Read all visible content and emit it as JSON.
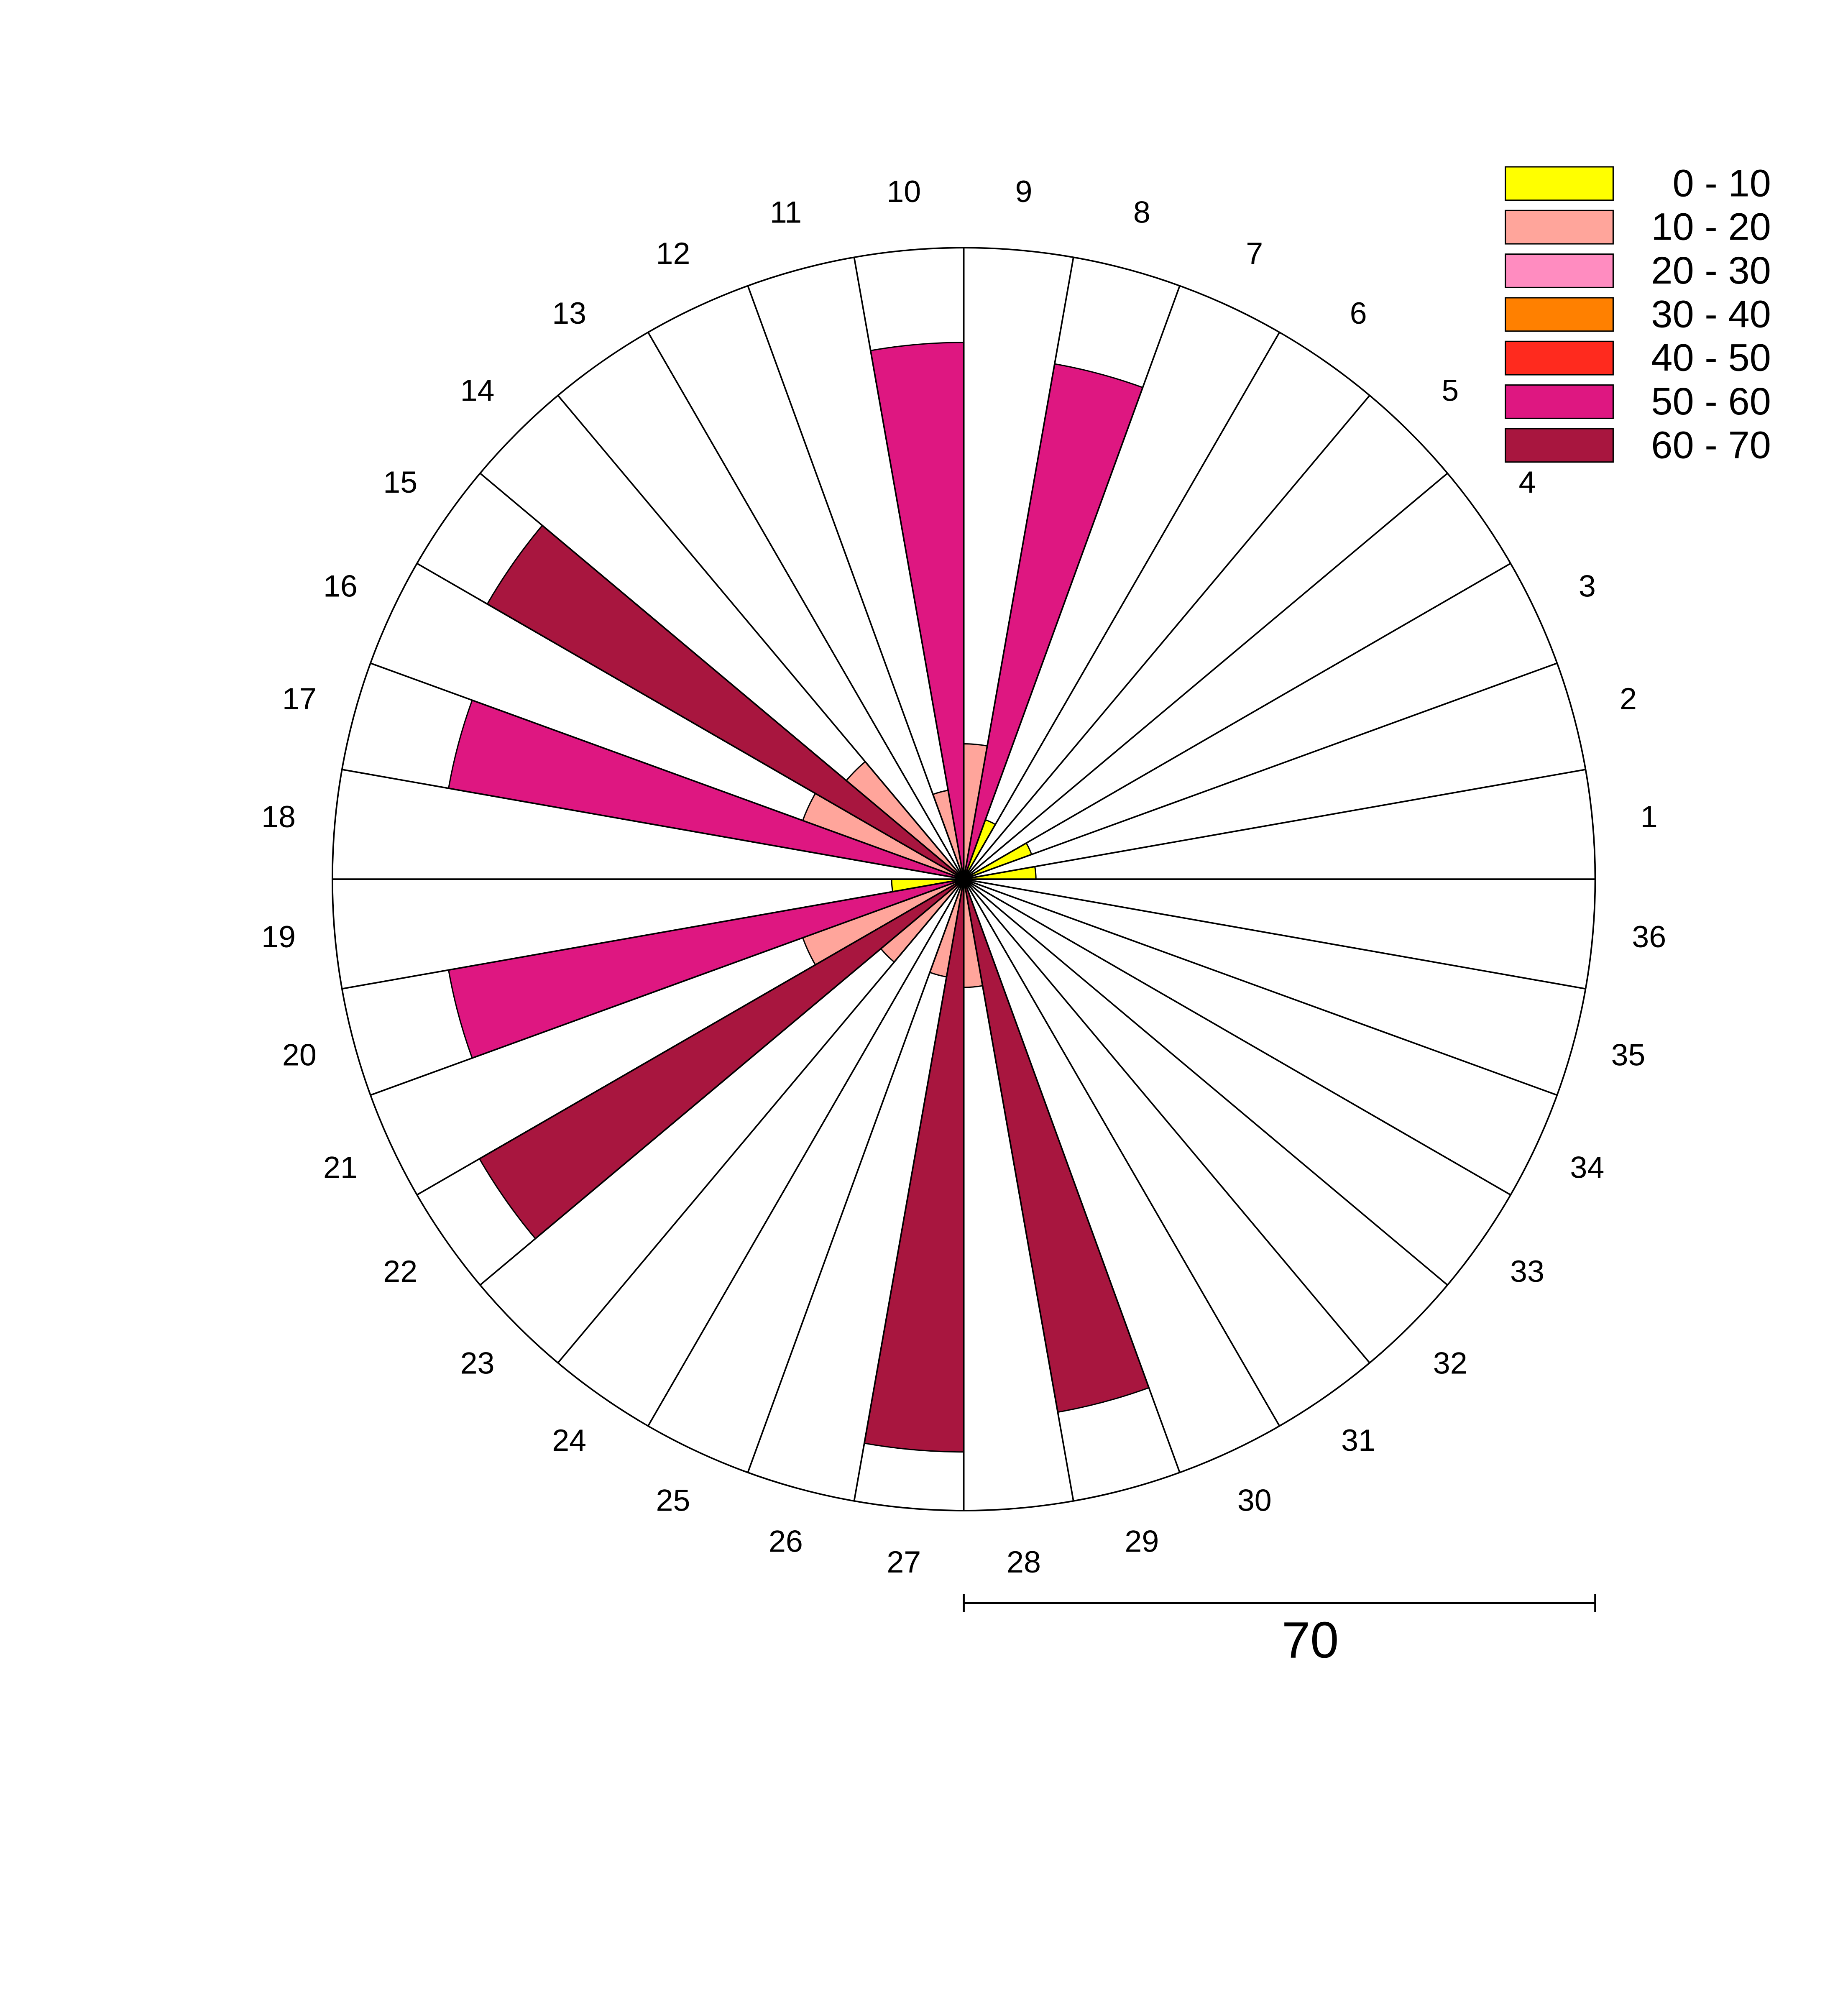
{
  "chart_data": {
    "type": "rose",
    "categories": [
      "1",
      "2",
      "3",
      "4",
      "5",
      "6",
      "7",
      "8",
      "9",
      "10",
      "11",
      "12",
      "13",
      "14",
      "15",
      "16",
      "17",
      "18",
      "19",
      "20",
      "21",
      "22",
      "23",
      "24",
      "25",
      "26",
      "27",
      "28",
      "29",
      "30",
      "31",
      "32",
      "33",
      "34",
      "35",
      "36"
    ],
    "values": [
      8,
      0,
      8,
      0,
      0,
      0,
      7,
      58,
      15,
      59.5,
      10,
      0,
      0,
      17,
      61,
      19,
      58,
      0,
      8,
      58,
      19,
      62,
      12,
      0,
      0,
      11,
      63.5,
      12,
      60,
      0,
      0,
      0,
      0,
      0,
      0,
      0
    ],
    "rlim": [
      0,
      70
    ],
    "rticks": [
      70
    ],
    "color_bins": [
      {
        "label": "0 - 10",
        "min": 0,
        "max": 10,
        "color": "#ffff00"
      },
      {
        "label": "10 - 20",
        "min": 10,
        "max": 20,
        "color": "#ffa59b"
      },
      {
        "label": "20 - 30",
        "min": 20,
        "max": 30,
        "color": "#ff8cc0"
      },
      {
        "label": "30 - 40",
        "min": 30,
        "max": 40,
        "color": "#ff8000"
      },
      {
        "label": "40 - 50",
        "min": 40,
        "max": 50,
        "color": "#ff2a1e"
      },
      {
        "label": "50 - 60",
        "min": 50,
        "max": 60,
        "color": "#de1781"
      },
      {
        "label": "60 - 70",
        "min": 60,
        "max": 70,
        "color": "#a8163f"
      }
    ]
  }
}
